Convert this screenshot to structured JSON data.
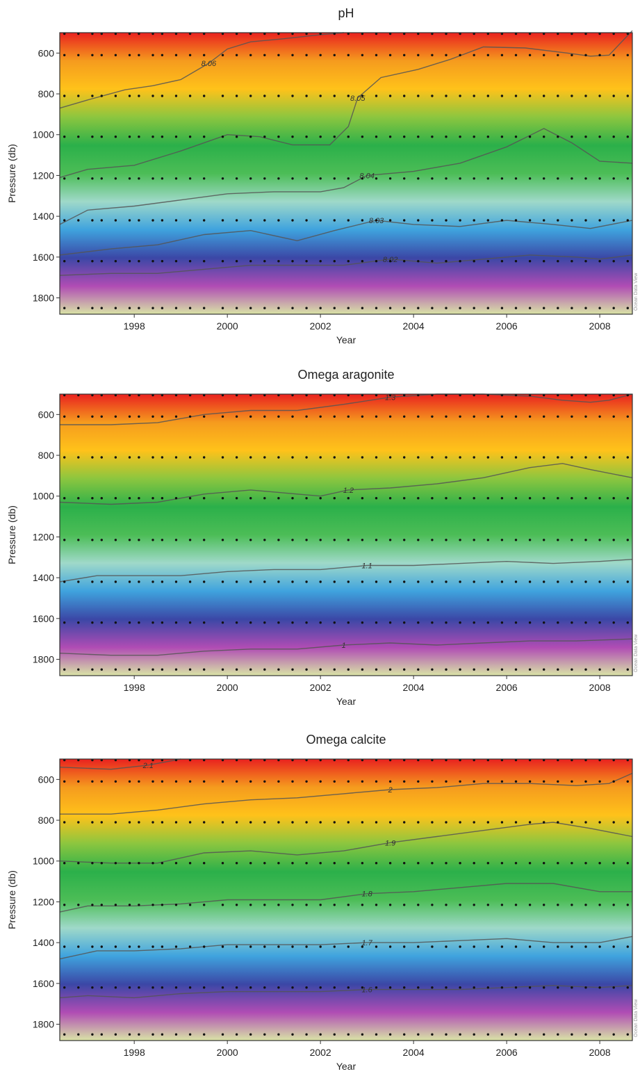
{
  "chart_data": [
    {
      "type": "heatmap",
      "title": "pH",
      "xlabel": "Year",
      "ylabel": "Pressure (db)",
      "xlim": [
        1996.4,
        2008.7
      ],
      "ylim": [
        500,
        1880
      ],
      "y_inverted": true,
      "xticks": [
        1998,
        2000,
        2002,
        2004,
        2006,
        2008
      ],
      "yticks": [
        600,
        800,
        1000,
        1200,
        1400,
        1600,
        1800
      ],
      "colormap": [
        "#d9e4a6",
        "#b04cb4",
        "#3b47a6",
        "#3fa3de",
        "#9fd9c9",
        "#4cbd56",
        "#2bb04a",
        "#8cc63f",
        "#ffc21a",
        "#f59b1e",
        "#e9221f"
      ],
      "color_scale": [
        8.0,
        8.06
      ],
      "contours": [
        {
          "label": "8.06",
          "points": [
            [
              1996.4,
              870
            ],
            [
              1997.0,
              830
            ],
            [
              1997.8,
              780
            ],
            [
              1998.4,
              760
            ],
            [
              1999.0,
              730
            ],
            [
              1999.6,
              650
            ],
            [
              2000.0,
              580
            ],
            [
              2000.5,
              545
            ],
            [
              2001.2,
              530
            ],
            [
              2002.0,
              510
            ],
            [
              2002.5,
              500
            ]
          ]
        },
        {
          "label": "8.05",
          "points": [
            [
              1996.4,
              1210
            ],
            [
              1997.0,
              1170
            ],
            [
              1998.0,
              1150
            ],
            [
              1999.0,
              1080
            ],
            [
              2000.0,
              1000
            ],
            [
              2000.7,
              1010
            ],
            [
              2001.4,
              1050
            ],
            [
              2002.2,
              1050
            ],
            [
              2002.6,
              960
            ],
            [
              2002.8,
              820
            ],
            [
              2003.3,
              720
            ],
            [
              2004.1,
              680
            ],
            [
              2004.8,
              630
            ],
            [
              2005.5,
              570
            ],
            [
              2006.4,
              575
            ],
            [
              2007.3,
              600
            ],
            [
              2007.8,
              615
            ],
            [
              2008.2,
              610
            ],
            [
              2008.7,
              490
            ]
          ]
        },
        {
          "label": "8.04",
          "points": [
            [
              1996.4,
              1440
            ],
            [
              1997.0,
              1370
            ],
            [
              1998.0,
              1350
            ],
            [
              1999.0,
              1320
            ],
            [
              2000.0,
              1290
            ],
            [
              2001.0,
              1280
            ],
            [
              2002.0,
              1280
            ],
            [
              2002.5,
              1260
            ],
            [
              2003.0,
              1200
            ],
            [
              2004.0,
              1180
            ],
            [
              2005.0,
              1140
            ],
            [
              2006.0,
              1060
            ],
            [
              2006.8,
              970
            ],
            [
              2007.4,
              1040
            ],
            [
              2008.0,
              1130
            ],
            [
              2008.7,
              1140
            ]
          ]
        },
        {
          "label": "8.03",
          "points": [
            [
              1996.4,
              1590
            ],
            [
              1997.5,
              1560
            ],
            [
              1998.5,
              1540
            ],
            [
              1999.5,
              1490
            ],
            [
              2000.5,
              1470
            ],
            [
              2001.5,
              1520
            ],
            [
              2002.3,
              1470
            ],
            [
              2003.2,
              1420
            ],
            [
              2004.0,
              1440
            ],
            [
              2005.0,
              1450
            ],
            [
              2006.0,
              1420
            ],
            [
              2007.0,
              1440
            ],
            [
              2007.8,
              1460
            ],
            [
              2008.7,
              1420
            ]
          ]
        },
        {
          "label": "8.02",
          "points": [
            [
              1996.4,
              1690
            ],
            [
              1997.5,
              1680
            ],
            [
              1998.5,
              1680
            ],
            [
              1999.5,
              1660
            ],
            [
              2000.5,
              1640
            ],
            [
              2001.5,
              1640
            ],
            [
              2002.5,
              1640
            ],
            [
              2003.5,
              1610
            ],
            [
              2004.5,
              1630
            ],
            [
              2005.5,
              1610
            ],
            [
              2006.5,
              1590
            ],
            [
              2007.5,
              1600
            ],
            [
              2008.0,
              1610
            ],
            [
              2008.7,
              1590
            ]
          ]
        }
      ]
    },
    {
      "type": "heatmap",
      "title": "Omega aragonite",
      "xlabel": "Year",
      "ylabel": "Pressure (db)",
      "xlim": [
        1996.4,
        2008.7
      ],
      "ylim": [
        500,
        1880
      ],
      "y_inverted": true,
      "xticks": [
        1998,
        2000,
        2002,
        2004,
        2006,
        2008
      ],
      "yticks": [
        600,
        800,
        1000,
        1200,
        1400,
        1600,
        1800
      ],
      "colormap": [
        "#d9e4a6",
        "#b04cb4",
        "#3b47a6",
        "#3fa3de",
        "#9fd9c9",
        "#4cbd56",
        "#2bb04a",
        "#8cc63f",
        "#ffc21a",
        "#f59b1e",
        "#e9221f"
      ],
      "color_scale": [
        1.0,
        1.3
      ],
      "contours": [
        {
          "label": "1.3",
          "points": [
            [
              1996.4,
              650
            ],
            [
              1997.5,
              650
            ],
            [
              1998.5,
              640
            ],
            [
              1999.5,
              600
            ],
            [
              2000.5,
              580
            ],
            [
              2001.5,
              580
            ],
            [
              2002.5,
              550
            ],
            [
              2003.5,
              515
            ],
            [
              2004.5,
              500
            ],
            [
              2005.5,
              500
            ],
            [
              2006.5,
              510
            ],
            [
              2007.2,
              530
            ],
            [
              2007.8,
              540
            ],
            [
              2008.2,
              530
            ],
            [
              2008.7,
              500
            ]
          ]
        },
        {
          "label": "1.2",
          "points": [
            [
              1996.4,
              1030
            ],
            [
              1997.5,
              1040
            ],
            [
              1998.5,
              1030
            ],
            [
              1999.5,
              990
            ],
            [
              2000.5,
              970
            ],
            [
              2001.5,
              990
            ],
            [
              2002.0,
              1000
            ],
            [
              2002.6,
              970
            ],
            [
              2003.5,
              960
            ],
            [
              2004.5,
              940
            ],
            [
              2005.5,
              910
            ],
            [
              2006.5,
              860
            ],
            [
              2007.2,
              840
            ],
            [
              2007.8,
              870
            ],
            [
              2008.7,
              910
            ]
          ]
        },
        {
          "label": "1.1",
          "points": [
            [
              1996.4,
              1420
            ],
            [
              1997.2,
              1390
            ],
            [
              1998.0,
              1390
            ],
            [
              1999.0,
              1390
            ],
            [
              2000.0,
              1370
            ],
            [
              2001.0,
              1360
            ],
            [
              2002.0,
              1360
            ],
            [
              2003.0,
              1340
            ],
            [
              2004.0,
              1340
            ],
            [
              2005.0,
              1330
            ],
            [
              2006.0,
              1320
            ],
            [
              2007.0,
              1330
            ],
            [
              2008.0,
              1320
            ],
            [
              2008.7,
              1310
            ]
          ]
        },
        {
          "label": "1",
          "points": [
            [
              1996.4,
              1770
            ],
            [
              1997.5,
              1780
            ],
            [
              1998.5,
              1780
            ],
            [
              1999.5,
              1760
            ],
            [
              2000.5,
              1750
            ],
            [
              2001.5,
              1750
            ],
            [
              2002.5,
              1730
            ],
            [
              2003.5,
              1720
            ],
            [
              2004.5,
              1730
            ],
            [
              2005.5,
              1720
            ],
            [
              2006.5,
              1710
            ],
            [
              2007.5,
              1710
            ],
            [
              2008.7,
              1700
            ]
          ]
        }
      ]
    },
    {
      "type": "heatmap",
      "title": "Omega calcite",
      "xlabel": "Year",
      "ylabel": "Pressure (db)",
      "xlim": [
        1996.4,
        2008.7
      ],
      "ylim": [
        500,
        1880
      ],
      "y_inverted": true,
      "xticks": [
        1998,
        2000,
        2002,
        2004,
        2006,
        2008
      ],
      "yticks": [
        600,
        800,
        1000,
        1200,
        1400,
        1600,
        1800
      ],
      "colormap": [
        "#d9e4a6",
        "#b04cb4",
        "#3b47a6",
        "#3fa3de",
        "#9fd9c9",
        "#4cbd56",
        "#2bb04a",
        "#8cc63f",
        "#ffc21a",
        "#f59b1e",
        "#e9221f"
      ],
      "color_scale": [
        1.55,
        2.1
      ],
      "contours": [
        {
          "label": "2.1",
          "points": [
            [
              1996.4,
              540
            ],
            [
              1997.5,
              550
            ],
            [
              1998.3,
              530
            ],
            [
              1999.0,
              500
            ]
          ]
        },
        {
          "label": "2",
          "points": [
            [
              1996.4,
              770
            ],
            [
              1997.5,
              770
            ],
            [
              1998.5,
              750
            ],
            [
              1999.5,
              720
            ],
            [
              2000.5,
              700
            ],
            [
              2001.5,
              690
            ],
            [
              2002.5,
              670
            ],
            [
              2003.5,
              650
            ],
            [
              2004.5,
              640
            ],
            [
              2005.5,
              620
            ],
            [
              2006.5,
              620
            ],
            [
              2007.5,
              630
            ],
            [
              2008.2,
              620
            ],
            [
              2008.7,
              570
            ]
          ]
        },
        {
          "label": "1.9",
          "points": [
            [
              1996.4,
              1000
            ],
            [
              1997.5,
              1010
            ],
            [
              1998.5,
              1010
            ],
            [
              1999.5,
              960
            ],
            [
              2000.5,
              950
            ],
            [
              2001.5,
              970
            ],
            [
              2002.5,
              950
            ],
            [
              2003.5,
              910
            ],
            [
              2004.5,
              880
            ],
            [
              2005.5,
              850
            ],
            [
              2006.5,
              820
            ],
            [
              2007.0,
              810
            ],
            [
              2007.8,
              840
            ],
            [
              2008.7,
              880
            ]
          ]
        },
        {
          "label": "1.8",
          "points": [
            [
              1996.4,
              1250
            ],
            [
              1997.0,
              1220
            ],
            [
              1998.0,
              1220
            ],
            [
              1999.0,
              1210
            ],
            [
              2000.0,
              1190
            ],
            [
              2001.0,
              1190
            ],
            [
              2002.0,
              1190
            ],
            [
              2003.0,
              1160
            ],
            [
              2004.0,
              1150
            ],
            [
              2005.0,
              1130
            ],
            [
              2006.0,
              1110
            ],
            [
              2007.0,
              1110
            ],
            [
              2008.0,
              1150
            ],
            [
              2008.7,
              1150
            ]
          ]
        },
        {
          "label": "1.7",
          "points": [
            [
              1996.4,
              1480
            ],
            [
              1997.2,
              1440
            ],
            [
              1998.0,
              1440
            ],
            [
              1999.0,
              1430
            ],
            [
              2000.0,
              1410
            ],
            [
              2001.0,
              1410
            ],
            [
              2002.0,
              1410
            ],
            [
              2003.0,
              1400
            ],
            [
              2004.0,
              1400
            ],
            [
              2005.0,
              1390
            ],
            [
              2006.0,
              1380
            ],
            [
              2007.0,
              1400
            ],
            [
              2008.0,
              1400
            ],
            [
              2008.7,
              1370
            ]
          ]
        },
        {
          "label": "1.6",
          "points": [
            [
              1996.4,
              1670
            ],
            [
              1997.0,
              1660
            ],
            [
              1998.0,
              1670
            ],
            [
              1999.0,
              1650
            ],
            [
              2000.0,
              1640
            ],
            [
              2001.0,
              1640
            ],
            [
              2002.0,
              1640
            ],
            [
              2003.0,
              1630
            ],
            [
              2004.0,
              1630
            ],
            [
              2005.0,
              1630
            ],
            [
              2006.0,
              1620
            ],
            [
              2007.0,
              1610
            ],
            [
              2008.0,
              1620
            ],
            [
              2008.7,
              1610
            ]
          ]
        }
      ]
    }
  ],
  "sample_grid": {
    "years": [
      1996.5,
      1996.8,
      1997.1,
      1997.3,
      1997.6,
      1997.9,
      1998.1,
      1998.4,
      1998.6,
      1998.9,
      1999.2,
      1999.5,
      1999.9,
      2000.2,
      2000.5,
      2000.8,
      2001.1,
      2001.4,
      2001.7,
      2002.0,
      2002.3,
      2002.6,
      2002.9,
      2003.2,
      2003.5,
      2003.8,
      2004.1,
      2004.4,
      2004.7,
      2005.0,
      2005.3,
      2005.6,
      2005.9,
      2006.2,
      2006.5,
      2006.8,
      2007.1,
      2007.4,
      2007.7,
      2008.0,
      2008.3,
      2008.6
    ],
    "pressures": [
      505,
      610,
      810,
      1010,
      1215,
      1420,
      1620,
      1850
    ]
  },
  "footer_note": "Ocean Data View"
}
